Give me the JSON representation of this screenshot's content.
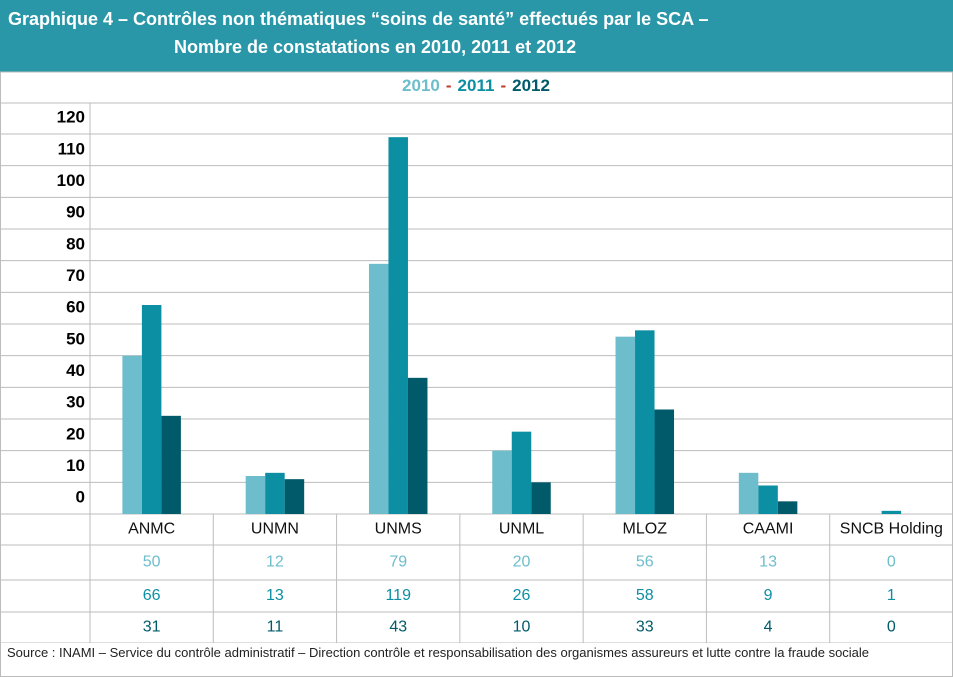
{
  "chart_data": {
    "type": "bar",
    "title": [
      "Graphique 4 – Contrôles non thématiques “soins de santé” effectués par le SCA –",
      "Nombre de constatations en 2010, 2011 et 2012"
    ],
    "legend_separator": "-",
    "categories": [
      "ANMC",
      "UNMN",
      "UNMS",
      "UNML",
      "MLOZ",
      "CAAMI",
      "SNCB Holding"
    ],
    "series": [
      {
        "name": "2010",
        "color": "#6dbdcc",
        "values": [
          50,
          12,
          79,
          20,
          56,
          13,
          0
        ]
      },
      {
        "name": "2011",
        "color": "#0d8fa3",
        "values": [
          66,
          13,
          119,
          26,
          58,
          9,
          1
        ]
      },
      {
        "name": "2012",
        "color": "#005a69",
        "values": [
          31,
          11,
          43,
          10,
          33,
          4,
          0
        ]
      }
    ],
    "ylim": [
      0,
      120
    ],
    "yticks": [
      0,
      10,
      20,
      30,
      40,
      50,
      60,
      70,
      80,
      90,
      100,
      110,
      120
    ],
    "grid": true,
    "source": "Source : INAMI – Service du contrôle administratif – Direction contrôle et responsabilisation des organismes assureurs et lutte contre la fraude sociale"
  }
}
